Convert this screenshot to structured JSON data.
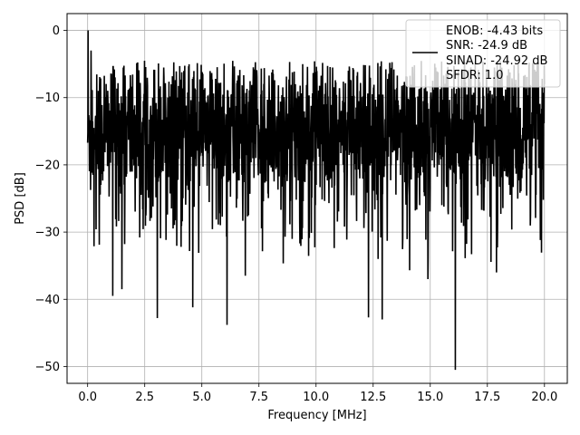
{
  "chart_data": {
    "type": "line",
    "xlabel": "Frequency [MHz]",
    "ylabel": "PSD [dB]",
    "xlim": [
      -0.9,
      21.0
    ],
    "ylim": [
      -52.5,
      2.5
    ],
    "x_ticks": [
      0.0,
      2.5,
      5.0,
      7.5,
      10.0,
      12.5,
      15.0,
      17.5,
      20.0
    ],
    "x_tick_labels": [
      "0.0",
      "2.5",
      "5.0",
      "7.5",
      "10.0",
      "12.5",
      "15.0",
      "17.5",
      "20.0"
    ],
    "y_ticks": [
      0,
      -10,
      -20,
      -30,
      -40,
      -50
    ],
    "y_tick_labels": [
      "0",
      "−10",
      "−20",
      "−30",
      "−40",
      "−50"
    ],
    "grid": true,
    "legend_position": "top-right",
    "line_color": "#000000",
    "series": [
      {
        "name": "ENOB: -4.43 bits\nSNR: -24.9 dB\nSINAD: -24.92 dB\nSFDR: 1.0",
        "legend_lines": [
          "ENOB: -4.43 bits",
          "SNR: -24.9 dB",
          "SINAD: -24.92 dB",
          "SFDR: 1.0"
        ],
        "x_range": [
          0.0,
          20.0
        ],
        "typical_range": [
          -27,
          -5
        ],
        "peaks": [
          {
            "x": 0.02,
            "y": 0.0
          },
          {
            "x": 0.15,
            "y": -3.0
          },
          {
            "x": 1.1,
            "y": -39.5
          },
          {
            "x": 1.5,
            "y": -38.5
          },
          {
            "x": 3.05,
            "y": -42.8
          },
          {
            "x": 4.6,
            "y": -41.2
          },
          {
            "x": 6.1,
            "y": -43.8
          },
          {
            "x": 6.9,
            "y": -36.5
          },
          {
            "x": 12.3,
            "y": -42.7
          },
          {
            "x": 12.9,
            "y": -43.0
          },
          {
            "x": 14.9,
            "y": -37.0
          },
          {
            "x": 16.1,
            "y": -50.5
          },
          {
            "x": 17.9,
            "y": -36.0
          }
        ]
      }
    ]
  }
}
